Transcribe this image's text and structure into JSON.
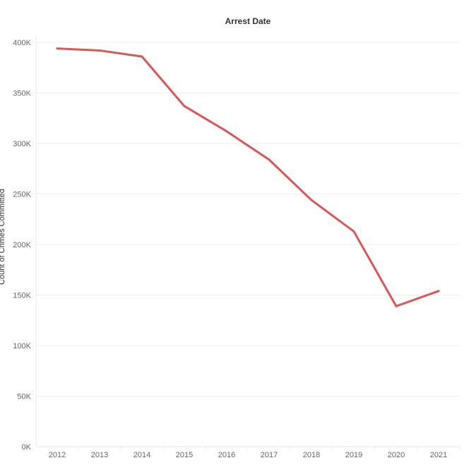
{
  "chart_data": {
    "type": "line",
    "title": "Arrest Date",
    "xlabel": "",
    "ylabel": "Count of Crimes Committed",
    "x": [
      "2012",
      "2013",
      "2014",
      "2015",
      "2016",
      "2017",
      "2018",
      "2019",
      "2020",
      "2021"
    ],
    "series": [
      {
        "values": [
          394000,
          392000,
          386000,
          337000,
          312000,
          284000,
          244000,
          213000,
          139000,
          154000
        ]
      }
    ],
    "ylim": [
      0,
      400000
    ],
    "yticks": [
      0,
      50000,
      100000,
      150000,
      200000,
      250000,
      300000,
      350000,
      400000
    ],
    "ytick_labels": [
      "0K",
      "50K",
      "100K",
      "150K",
      "200K",
      "250K",
      "300K",
      "350K",
      "400K"
    ],
    "grid": "horizontal",
    "legend": "none",
    "line_color": "#dc5656"
  }
}
